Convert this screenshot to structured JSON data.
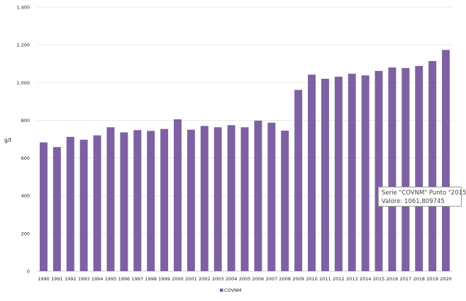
{
  "chart_data": {
    "type": "bar",
    "ylabel": "g/t",
    "xlabel": "",
    "title": "",
    "ylim": [
      0,
      1400
    ],
    "yticks": [
      0,
      200,
      400,
      600,
      800,
      1000,
      1200,
      1400
    ],
    "ytick_labels": [
      "0",
      "200",
      "400",
      "600",
      "800",
      "1.000",
      "1.200",
      "1.400"
    ],
    "grid": true,
    "legend_position": "bottom-center",
    "categories": [
      "1990",
      "1991",
      "1992",
      "1993",
      "1994",
      "1995",
      "1996",
      "1997",
      "1998",
      "1999",
      "2000",
      "2001",
      "2002",
      "2003",
      "2004",
      "2005",
      "2006",
      "2007",
      "2008",
      "2009",
      "2010",
      "2011",
      "2012",
      "2013",
      "2014",
      "2015",
      "2016",
      "2017",
      "2018",
      "2019",
      "2020"
    ],
    "series": [
      {
        "name": "COVNM",
        "color": "#7e61a2",
        "values": [
          683,
          658,
          712,
          697,
          720,
          763,
          736,
          748,
          744,
          754,
          805,
          750,
          770,
          763,
          774,
          763,
          798,
          787,
          745,
          961,
          1042,
          1020,
          1031,
          1047,
          1038,
          1061.809745,
          1080,
          1077,
          1088,
          1114,
          1173
        ]
      }
    ]
  },
  "tooltip": {
    "line1": "Serie \"COVNM\" Punto \"2015",
    "line2": "Valore: 1061,809745"
  }
}
